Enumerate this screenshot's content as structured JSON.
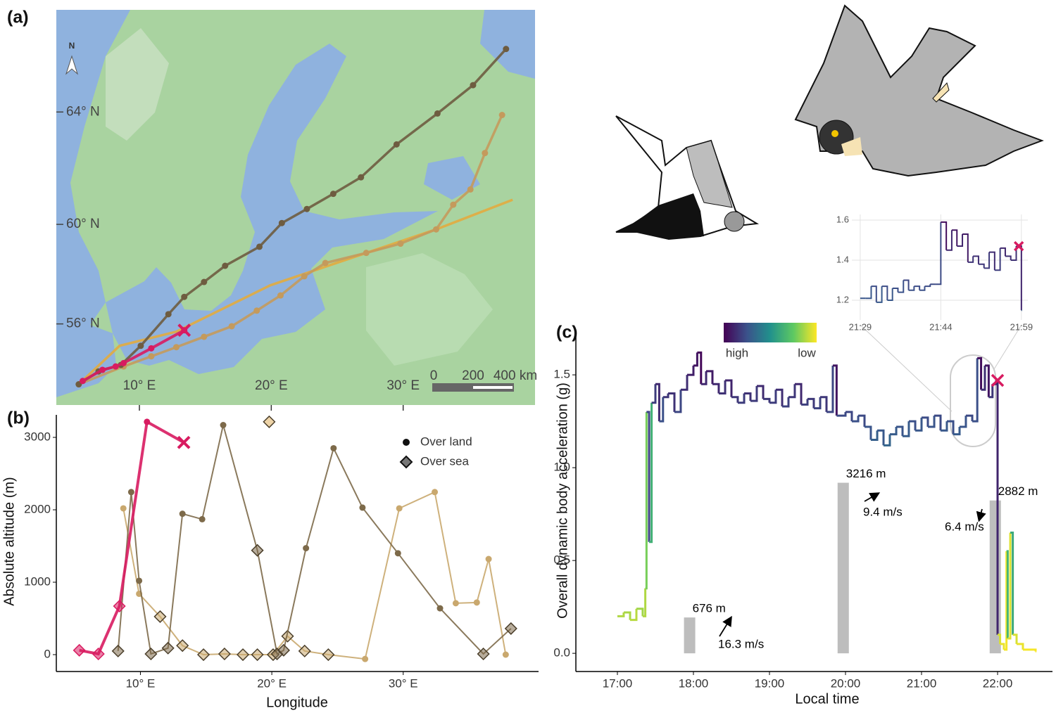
{
  "chart_data": [
    {
      "type": "map",
      "panel": "(a)",
      "xlim": [
        3.7,
        40
      ],
      "ylim": [
        52.4,
        67.2
      ],
      "xticks": [
        {
          "value": 10,
          "label": "10° E"
        },
        {
          "value": 20,
          "label": "20° E"
        },
        {
          "value": 30,
          "label": "30° E"
        }
      ],
      "yticks": [
        {
          "value": 56,
          "label": "56° N"
        },
        {
          "value": 60,
          "label": "60° N"
        },
        {
          "value": 64,
          "label": "64° N"
        }
      ],
      "north_label": "N",
      "scale_labels": [
        "0",
        "200",
        "400 km"
      ],
      "series": [
        {
          "color": "#e2ab3f",
          "markers": "none",
          "x": [
            5.4,
            8.5,
            12.8,
            19.9,
            32.5,
            38.3
          ],
          "values": [
            53.35,
            55.06,
            55.67,
            57.6,
            59.81,
            60.92
          ]
        },
        {
          "color": "#c49a5c",
          "markers": "dot",
          "x": [
            5.4,
            8.8,
            10.9,
            12.8,
            14.9,
            17.0,
            18.9,
            20.7,
            22.5,
            24.1,
            27.2,
            29.8,
            32.5,
            33.8,
            35.1,
            36.2,
            37.5
          ],
          "values": [
            53.35,
            54.15,
            54.6,
            55.0,
            55.45,
            55.9,
            56.56,
            57.19,
            57.97,
            58.5,
            58.9,
            59.26,
            59.81,
            60.74,
            61.3,
            62.6,
            63.9
          ]
        },
        {
          "color": "#6e5c40",
          "markers": "dot",
          "x": [
            5.4,
            6.9,
            8.6,
            10.1,
            12.2,
            13.4,
            14.9,
            16.5,
            19.1,
            20.8,
            22.7,
            24.7,
            26.8,
            29.5,
            32.6,
            35.3,
            37.8
          ],
          "values": [
            53.35,
            53.93,
            54.22,
            55.06,
            56.41,
            57.13,
            57.74,
            58.39,
            59.14,
            60.05,
            60.58,
            61.14,
            61.74,
            62.9,
            63.95,
            64.88,
            66.02
          ]
        },
        {
          "color": "#d81b60",
          "markers": "dot",
          "end": "cross",
          "x": [
            5.7,
            7.2,
            8.2,
            8.8,
            10.9,
            13.4
          ],
          "values": [
            53.5,
            54.0,
            54.15,
            54.3,
            54.95,
            55.73
          ]
        }
      ]
    },
    {
      "type": "line",
      "panel": "(b)",
      "xlabel": "Longitude",
      "ylabel": "Absolute altitude (m)",
      "xlim": [
        3.6,
        40.3
      ],
      "ylim": [
        -233,
        3311
      ],
      "xticks": [
        {
          "value": 10,
          "label": "10° E"
        },
        {
          "value": 20,
          "label": "20° E"
        },
        {
          "value": 30,
          "label": "30° E"
        }
      ],
      "yticks": [
        0,
        1000,
        2000,
        3000
      ],
      "legend": [
        {
          "label": "Over land",
          "marker": "circle"
        },
        {
          "label": "Over sea",
          "marker": "diamond"
        }
      ],
      "legend_position": "top-right",
      "series": [
        {
          "color": "#e0b060",
          "width": 2,
          "x": [
            19.8
          ],
          "values": [
            3215
          ],
          "markers": [
            "diamond"
          ]
        },
        {
          "color": "#c9a86e",
          "width": 2,
          "x": [
            8.7,
            9.9,
            11.5,
            13.2,
            14.8,
            16.4,
            17.8,
            18.9,
            20.1,
            21.2,
            22.5,
            24.3,
            27.1,
            29.7,
            32.4,
            34.0,
            35.6,
            36.5,
            37.8
          ],
          "values": [
            2020,
            840,
            525,
            125,
            0,
            10,
            0,
            0,
            0,
            255,
            50,
            0,
            -60,
            2020,
            2245,
            710,
            720,
            1320,
            0
          ],
          "markers": [
            "circle",
            "circle",
            "diamond",
            "diamond",
            "diamond",
            "diamond",
            "diamond",
            "diamond",
            "diamond",
            "diamond",
            "diamond",
            "diamond",
            "circle",
            "circle",
            "circle",
            "circle",
            "circle",
            "circle",
            "circle"
          ]
        },
        {
          "color": "#7d6a4a",
          "width": 2,
          "x": [
            8.3,
            9.3,
            9.9,
            10.8,
            12.1,
            13.2,
            14.7,
            16.3,
            18.9,
            20.4,
            20.9,
            22.6,
            24.7,
            26.9,
            29.6,
            32.8,
            36.1,
            38.2
          ],
          "values": [
            50,
            2245,
            1020,
            10,
            90,
            1945,
            1870,
            3170,
            1440,
            10,
            60,
            1470,
            2850,
            2030,
            1400,
            640,
            10,
            360
          ],
          "markers": [
            "diamond",
            "circle",
            "circle",
            "diamond",
            "diamond",
            "circle",
            "circle",
            "circle",
            "diamond",
            "diamond",
            "diamond",
            "circle",
            "circle",
            "circle",
            "circle",
            "circle",
            "diamond",
            "diamond"
          ]
        },
        {
          "color": "#d81b60",
          "width": 4,
          "x": [
            5.35,
            6.8,
            8.4,
            10.5,
            13.3
          ],
          "values": [
            60,
            10,
            670,
            3215,
            2930
          ],
          "markers": [
            "diamond",
            "diamond",
            "diamond",
            "circle",
            "cross"
          ]
        }
      ]
    },
    {
      "type": "step",
      "panel": "(c)",
      "xlabel": "Local time",
      "ylabel": "Overall dynamic body acceleration (g)",
      "xlim": [
        16.454,
        22.722
      ],
      "ylim": [
        -0.098,
        1.739
      ],
      "y2lim": [
        -343,
        6087
      ],
      "xticks": [
        {
          "value": 17,
          "label": "17:00"
        },
        {
          "value": 18,
          "label": "18:00"
        },
        {
          "value": 19,
          "label": "19:00"
        },
        {
          "value": 20,
          "label": "20:00"
        },
        {
          "value": 21,
          "label": "21:00"
        },
        {
          "value": 22,
          "label": "22:00"
        }
      ],
      "yticks": [
        {
          "value": 0,
          "label": "0.0"
        },
        0.5,
        {
          "value": 1,
          "label": "1.0"
        },
        1.5
      ],
      "colorscale": [
        "#440154",
        "#3b528b",
        "#21918c",
        "#5ec962",
        "#fde725"
      ],
      "color_range": [
        0,
        1.65
      ],
      "colorbar_labels": [
        "high",
        "low"
      ],
      "series": [
        {
          "x": [
            17.0,
            17.083,
            17.167,
            17.25,
            17.333,
            17.367,
            17.383,
            17.417,
            17.45,
            17.5,
            17.55,
            17.6,
            17.667,
            17.75,
            17.833,
            17.917,
            18.0,
            18.05,
            18.1,
            18.167,
            18.25,
            18.333,
            18.417,
            18.5,
            18.583,
            18.667,
            18.75,
            18.833,
            18.917,
            19.0,
            19.083,
            19.167,
            19.25,
            19.333,
            19.417,
            19.5,
            19.583,
            19.667,
            19.75,
            19.833,
            19.883,
            20.0,
            20.083,
            20.167,
            20.25,
            20.333,
            20.417,
            20.5,
            20.583,
            20.667,
            20.75,
            20.833,
            20.917,
            21.0,
            21.083,
            21.167,
            21.25,
            21.333,
            21.417,
            21.5,
            21.583,
            21.667,
            21.733,
            21.783,
            21.833,
            21.883,
            21.933,
            21.983,
            22.0,
            22.033,
            22.083,
            22.117,
            22.133,
            22.167,
            22.2,
            22.25,
            22.333,
            22.5
          ],
          "values": [
            0.2,
            0.22,
            0.18,
            0.24,
            0.2,
            0.35,
            1.3,
            0.6,
            1.35,
            1.45,
            1.25,
            1.38,
            1.4,
            1.3,
            1.42,
            1.5,
            1.55,
            1.62,
            1.45,
            1.52,
            1.45,
            1.4,
            1.47,
            1.38,
            1.35,
            1.4,
            1.36,
            1.44,
            1.37,
            1.35,
            1.42,
            1.33,
            1.38,
            1.45,
            1.34,
            1.37,
            1.32,
            1.38,
            1.3,
            1.55,
            1.28,
            1.3,
            1.25,
            1.28,
            1.22,
            1.15,
            1.2,
            1.12,
            1.18,
            1.22,
            1.17,
            1.25,
            1.2,
            1.27,
            1.22,
            1.28,
            1.2,
            1.25,
            1.18,
            1.22,
            1.28,
            1.25,
            1.59,
            1.42,
            1.55,
            1.38,
            1.45,
            1.47,
            0.1,
            0.05,
            0.02,
            0.55,
            0.08,
            0.65,
            0.1,
            0.05,
            0.02,
            0.01
          ]
        }
      ],
      "marker_x": 22.0,
      "marker_value": 1.47,
      "bars": {
        "axis": "y2",
        "color": "#bdbdbd",
        "x": [
          17.95,
          19.97,
          21.97
        ],
        "values": [
          676,
          3216,
          2882
        ],
        "value_labels": [
          "676 m",
          "3216 m",
          "2882 m"
        ]
      },
      "annotations": [
        "16.3 m/s",
        "9.4 m/s",
        "6.4 m/s"
      ]
    },
    {
      "type": "step",
      "xlim": [
        21.457,
        22.003
      ],
      "ylim": [
        1.102,
        1.628
      ],
      "grid": true,
      "xticks": [
        {
          "value": 21.483,
          "label": "21:29"
        },
        {
          "value": 21.733,
          "label": "21:44"
        },
        {
          "value": 21.983,
          "label": "21:59"
        }
      ],
      "yticks": [
        1.2,
        1.4,
        1.6
      ],
      "colorscale": [
        "#440154",
        "#3b528b",
        "#21918c",
        "#5ec962",
        "#fde725"
      ],
      "color_range": [
        0,
        1.65
      ],
      "series": [
        {
          "x": [
            21.483,
            21.5,
            21.517,
            21.533,
            21.55,
            21.567,
            21.583,
            21.6,
            21.617,
            21.633,
            21.65,
            21.667,
            21.683,
            21.7,
            21.717,
            21.733,
            21.75,
            21.767,
            21.783,
            21.8,
            21.817,
            21.833,
            21.85,
            21.867,
            21.883,
            21.9,
            21.917,
            21.933,
            21.95,
            21.967,
            21.983
          ],
          "values": [
            1.21,
            1.21,
            1.27,
            1.19,
            1.27,
            1.2,
            1.26,
            1.24,
            1.3,
            1.25,
            1.27,
            1.25,
            1.27,
            1.28,
            1.28,
            1.59,
            1.45,
            1.55,
            1.47,
            1.53,
            1.39,
            1.42,
            1.38,
            1.36,
            1.44,
            1.35,
            1.46,
            1.42,
            1.4,
            1.47,
            1.15
          ]
        }
      ],
      "marker_x": 21.975,
      "marker_value": 1.47
    }
  ]
}
